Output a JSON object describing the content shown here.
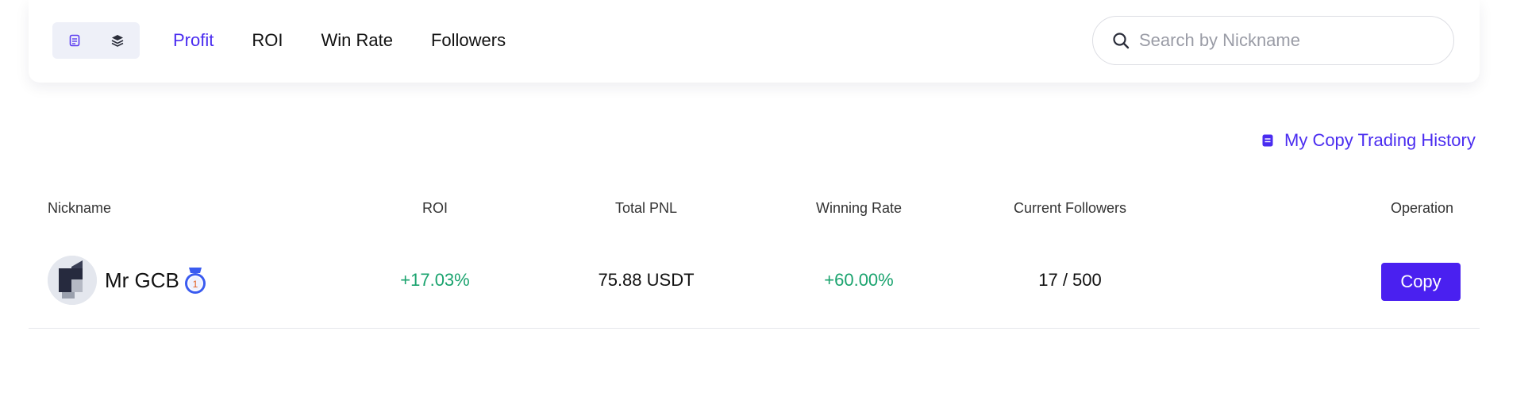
{
  "tabs": [
    {
      "label": "Profit",
      "active": true
    },
    {
      "label": "ROI",
      "active": false
    },
    {
      "label": "Win Rate",
      "active": false
    },
    {
      "label": "Followers",
      "active": false
    }
  ],
  "view_toggle": {
    "icons": [
      "list-view-icon",
      "layers-view-icon"
    ]
  },
  "search": {
    "placeholder": "Search by Nickname",
    "value": ""
  },
  "history_link": {
    "label": "My Copy Trading History",
    "icon": "document-icon"
  },
  "table": {
    "headers": {
      "nickname": "Nickname",
      "roi": "ROI",
      "total_pnl": "Total PNL",
      "winning_rate": "Winning Rate",
      "current_followers": "Current Followers",
      "operation": "Operation"
    },
    "rows": [
      {
        "nickname": "Mr GCB",
        "rank": "1",
        "roi": "+17.03%",
        "total_pnl": "75.88 USDT",
        "winning_rate": "+60.00%",
        "current_followers": "17 / 500",
        "operation_label": "Copy"
      }
    ]
  },
  "colors": {
    "accent": "#4a2cf0",
    "button": "#4a20f0",
    "positive": "#1aa36e"
  }
}
